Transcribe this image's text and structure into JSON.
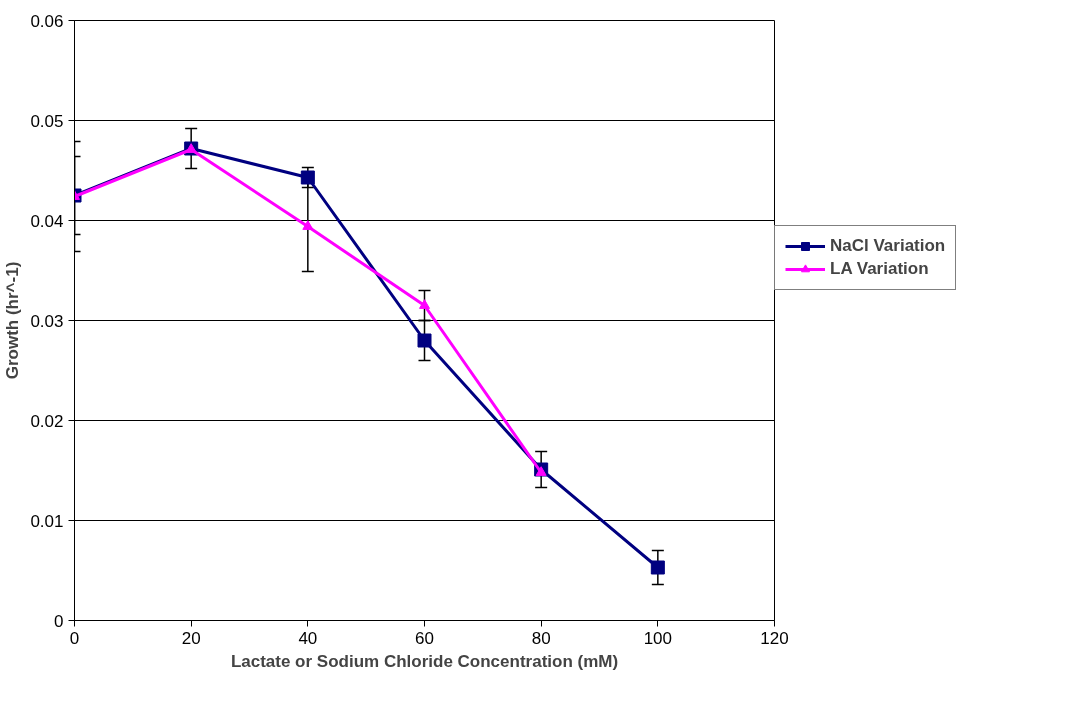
{
  "chart_data": {
    "type": "line",
    "xlabel": "Lactate or Sodium Chloride Concentration (mM)",
    "ylabel": "Growth (hr^-1)",
    "x": [
      0,
      20,
      40,
      60,
      80,
      100
    ],
    "series": [
      {
        "name": "NaCl Variation",
        "color": "#000080",
        "marker": "square",
        "values": [
          0.0425,
          0.0472,
          0.0443,
          0.028,
          0.0151,
          0.0053
        ],
        "errors": [
          0.0039,
          0.002,
          0.001,
          0.002,
          0.0018,
          0.0017
        ]
      },
      {
        "name": "LA Variation",
        "color": "#ff00ff",
        "marker": "triangle",
        "values": [
          0.0424,
          0.0471,
          0.0394,
          0.0315,
          0.0148,
          null
        ],
        "errors": [
          0.0055,
          null,
          0.0045,
          0.0015,
          null,
          null
        ]
      }
    ],
    "xlim": [
      0,
      120
    ],
    "xticks": [
      0,
      20,
      40,
      60,
      80,
      100,
      120
    ],
    "ylim": [
      0,
      0.06
    ],
    "yticks": [
      0,
      0.01,
      0.02,
      0.03,
      0.04,
      0.05,
      0.06
    ],
    "grid": "y",
    "legend": "right"
  }
}
